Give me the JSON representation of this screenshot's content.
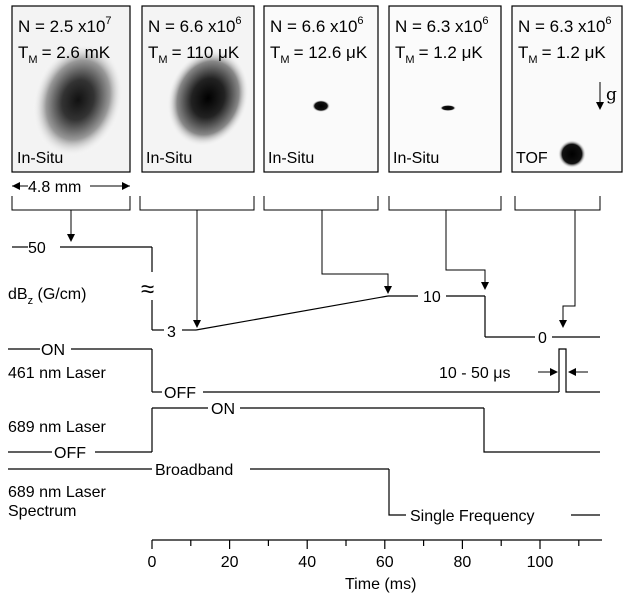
{
  "panels": [
    {
      "n_base": "N = 2.5 x10",
      "n_exp": "7",
      "t_sub": "M",
      "t_val": "= 2.6 mK",
      "mode": "In-Situ"
    },
    {
      "n_base": "N = 6.6 x10",
      "n_exp": "6",
      "t_sub": "M",
      "t_val": "= 110 μK",
      "mode": "In-Situ"
    },
    {
      "n_base": "N = 6.6 x10",
      "n_exp": "6",
      "t_sub": "M",
      "t_val": "= 12.6 μK",
      "mode": "In-Situ"
    },
    {
      "n_base": "N = 6.3 x10",
      "n_exp": "6",
      "t_sub": "M",
      "t_val": "= 1.2 μK",
      "mode": "In-Situ"
    },
    {
      "n_base": "N = 6.3 x10",
      "n_exp": "6",
      "t_sub": "M",
      "t_val": "= 1.2 μK",
      "mode": "TOF"
    }
  ],
  "gravity_label": "g",
  "scale_label": "4.8 mm",
  "gradient": {
    "label_main": "dB",
    "label_sub": "z",
    "label_unit": " (G/cm)",
    "values": [
      "50",
      "3",
      "10",
      "0"
    ],
    "break_mark": "≈"
  },
  "laser461": {
    "label": "461 nm Laser",
    "on": "ON",
    "off": "OFF",
    "pulse": "10 - 50 μs"
  },
  "laser689": {
    "label": "689 nm Laser",
    "on": "ON",
    "off": "OFF"
  },
  "spectrum": {
    "label_line1": "689 nm Laser",
    "label_line2": "Spectrum",
    "broadband": "Broadband",
    "single": "Single Frequency"
  },
  "axis": {
    "ticks": [
      "0",
      "20",
      "40",
      "60",
      "80",
      "100"
    ],
    "xlabel": "Time (ms)"
  }
}
